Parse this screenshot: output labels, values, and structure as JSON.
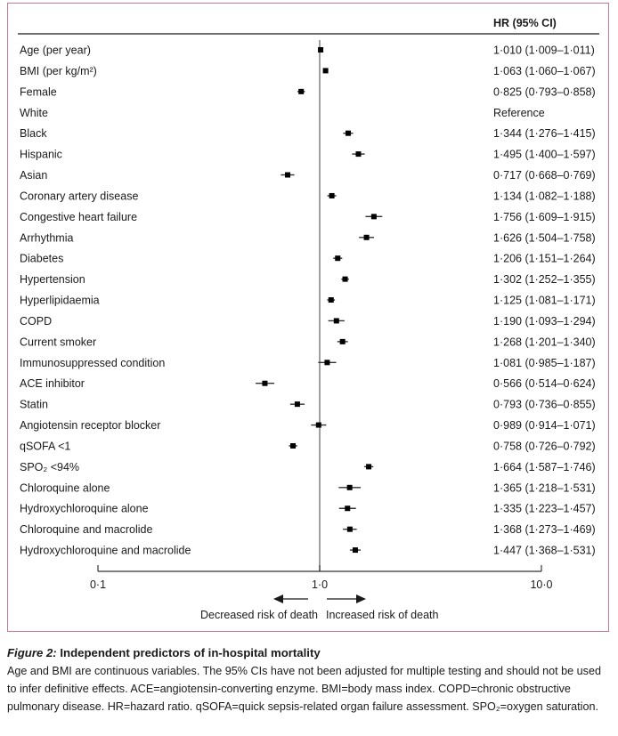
{
  "chart_data": {
    "type": "forest",
    "scale": "log",
    "xlim": [
      0.1,
      10.0
    ],
    "reference_line": 1.0,
    "column_header": "HR (95% CI)",
    "x_ticks": [
      "0·1",
      "1·0",
      "10·0"
    ],
    "x_tick_values": [
      0.1,
      1.0,
      10.0
    ],
    "arrow_left_label": "Decreased risk of death",
    "arrow_right_label": "Increased risk of death",
    "rows": [
      {
        "label": "Age (per year)",
        "hr": 1.01,
        "lo": 1.009,
        "hi": 1.011,
        "text": "1·010 (1·009–1·011)"
      },
      {
        "label": "BMI (per kg/m²)",
        "hr": 1.063,
        "lo": 1.06,
        "hi": 1.067,
        "text": "1·063 (1·060–1·067)"
      },
      {
        "label": "Female",
        "hr": 0.825,
        "lo": 0.793,
        "hi": 0.858,
        "text": "0·825 (0·793–0·858)"
      },
      {
        "label": "White",
        "hr": null,
        "lo": null,
        "hi": null,
        "text": "Reference"
      },
      {
        "label": "Black",
        "hr": 1.344,
        "lo": 1.276,
        "hi": 1.415,
        "text": "1·344 (1·276–1·415)"
      },
      {
        "label": "Hispanic",
        "hr": 1.495,
        "lo": 1.4,
        "hi": 1.597,
        "text": "1·495 (1·400–1·597)"
      },
      {
        "label": "Asian",
        "hr": 0.717,
        "lo": 0.668,
        "hi": 0.769,
        "text": "0·717 (0·668–0·769)"
      },
      {
        "label": "Coronary artery disease",
        "hr": 1.134,
        "lo": 1.082,
        "hi": 1.188,
        "text": "1·134 (1·082–1·188)"
      },
      {
        "label": "Congestive heart failure",
        "hr": 1.756,
        "lo": 1.609,
        "hi": 1.915,
        "text": "1·756 (1·609–1·915)"
      },
      {
        "label": "Arrhythmia",
        "hr": 1.626,
        "lo": 1.504,
        "hi": 1.758,
        "text": "1·626 (1·504–1·758)"
      },
      {
        "label": "Diabetes",
        "hr": 1.206,
        "lo": 1.151,
        "hi": 1.264,
        "text": "1·206 (1·151–1·264)"
      },
      {
        "label": "Hypertension",
        "hr": 1.302,
        "lo": 1.252,
        "hi": 1.355,
        "text": "1·302 (1·252–1·355)"
      },
      {
        "label": "Hyperlipidaemia",
        "hr": 1.125,
        "lo": 1.081,
        "hi": 1.171,
        "text": "1·125 (1·081–1·171)"
      },
      {
        "label": "COPD",
        "hr": 1.19,
        "lo": 1.093,
        "hi": 1.294,
        "text": "1·190 (1·093–1·294)"
      },
      {
        "label": "Current smoker",
        "hr": 1.268,
        "lo": 1.201,
        "hi": 1.34,
        "text": "1·268 (1·201–1·340)"
      },
      {
        "label": "Immunosuppressed condition",
        "hr": 1.081,
        "lo": 0.985,
        "hi": 1.187,
        "text": "1·081 (0·985–1·187)"
      },
      {
        "label": "ACE inhibitor",
        "hr": 0.566,
        "lo": 0.514,
        "hi": 0.624,
        "text": "0·566 (0·514–0·624)"
      },
      {
        "label": "Statin",
        "hr": 0.793,
        "lo": 0.736,
        "hi": 0.855,
        "text": "0·793 (0·736–0·855)"
      },
      {
        "label": "Angiotensin receptor blocker",
        "hr": 0.989,
        "lo": 0.914,
        "hi": 1.071,
        "text": "0·989 (0·914–1·071)"
      },
      {
        "label": "qSOFA <1",
        "hr": 0.758,
        "lo": 0.726,
        "hi": 0.792,
        "text": "0·758 (0·726–0·792)"
      },
      {
        "label": "SPO₂ <94%",
        "hr": 1.664,
        "lo": 1.587,
        "hi": 1.746,
        "text": "1·664 (1·587–1·746)"
      },
      {
        "label": "Chloroquine alone",
        "hr": 1.365,
        "lo": 1.218,
        "hi": 1.531,
        "text": "1·365 (1·218–1·531)"
      },
      {
        "label": "Hydroxychloroquine alone",
        "hr": 1.335,
        "lo": 1.223,
        "hi": 1.457,
        "text": "1·335 (1·223–1·457)"
      },
      {
        "label": "Chloroquine and macrolide",
        "hr": 1.368,
        "lo": 1.273,
        "hi": 1.469,
        "text": "1·368 (1·273–1·469)"
      },
      {
        "label": "Hydroxychloroquine and macrolide",
        "hr": 1.447,
        "lo": 1.368,
        "hi": 1.531,
        "text": "1·447 (1·368–1·531)"
      }
    ]
  },
  "caption": {
    "figure_label": "Figure 2:",
    "title": " Independent predictors of in-hospital mortality",
    "body": "Age and BMI are continuous variables. The 95% CIs have not been adjusted for multiple testing and should not be used to infer definitive effects. ACE=angiotensin-converting enzyme. BMI=body mass index. COPD=chronic obstructive pulmonary disease. HR=hazard ratio. qSOFA=quick sepsis-related organ failure assessment. SPO₂=oxygen saturation."
  },
  "colors": {
    "frame": "#c7799a",
    "marker": "#000000",
    "ci_line": "#333333",
    "reference_line": "#777777"
  }
}
